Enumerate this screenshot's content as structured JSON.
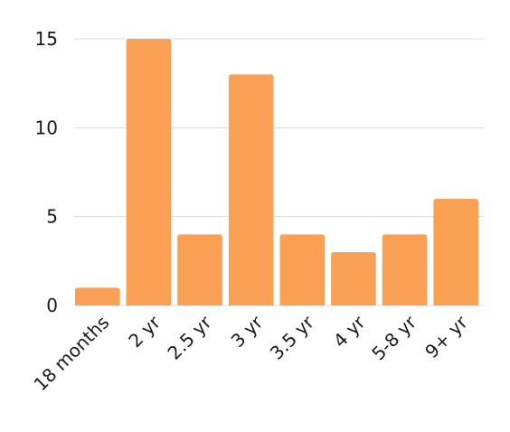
{
  "chart_data": {
    "type": "bar",
    "title": "",
    "xlabel": "",
    "ylabel": "",
    "categories": [
      "18 months",
      "2 yr",
      "2.5 yr",
      "3 yr",
      "3.5 yr",
      "4 yr",
      "5-8 yr",
      "9+ yr"
    ],
    "values": [
      1,
      15,
      4,
      13,
      4,
      3,
      4,
      6
    ],
    "ylim": [
      0,
      15
    ],
    "yticks": [
      0,
      5,
      10,
      15
    ],
    "grid": true,
    "legend": "none",
    "bar_color": "#f9a055"
  }
}
